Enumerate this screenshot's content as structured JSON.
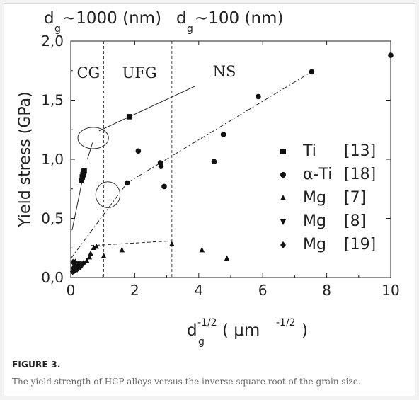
{
  "chart_data": {
    "type": "scatter",
    "title": "",
    "top_labels": {
      "left_main": "d",
      "left_sub": "g",
      "left_rest": "~1000 (nm)",
      "right_main": "d",
      "right_sub": "g",
      "right_rest": "~100 (nm)"
    },
    "xlabel": {
      "main": "d",
      "sub": "g",
      "sup": "-1/2",
      "mid": " ( μm",
      "sup2": "-1/2",
      "end": ")"
    },
    "ylabel": "Yield stress (GPa)",
    "xlim": [
      0,
      10
    ],
    "ylim": [
      0,
      2
    ],
    "x_ticks": [
      {
        "value": 0,
        "label": "0"
      },
      {
        "value": 2,
        "label": "2"
      },
      {
        "value": 4,
        "label": "4"
      },
      {
        "value": 6,
        "label": "6"
      },
      {
        "value": 8,
        "label": "8"
      },
      {
        "value": 10,
        "label": "10"
      }
    ],
    "y_ticks": [
      {
        "value": 0,
        "label": "0,0"
      },
      {
        "value": 0.5,
        "label": "0,5"
      },
      {
        "value": 1.0,
        "label": "1,0"
      },
      {
        "value": 1.5,
        "label": "1,5"
      },
      {
        "value": 2.0,
        "label": "2,0"
      }
    ],
    "grid": false,
    "legend_position": "right",
    "region_labels": [
      {
        "text": "CG",
        "x": 0.55,
        "y": 1.69
      },
      {
        "text": "UFG",
        "x": 2.15,
        "y": 1.69
      },
      {
        "text": "NS",
        "x": 4.8,
        "y": 1.7
      }
    ],
    "dividers_x": [
      1.03,
      3.16
    ],
    "series": [
      {
        "name": "Ti",
        "ref": "[13]",
        "marker": "square",
        "x": [
          0.33,
          0.36,
          0.38,
          0.4,
          0.42,
          1.83
        ],
        "y": [
          0.82,
          0.85,
          0.87,
          0.89,
          0.9,
          1.36
        ]
      },
      {
        "name": "α-Ti",
        "ref": "[18]",
        "marker": "circle",
        "x": [
          1.76,
          2.11,
          2.8,
          2.82,
          2.92,
          4.48,
          4.77,
          5.86,
          7.53,
          10.0
        ],
        "y": [
          0.8,
          1.07,
          0.97,
          0.94,
          0.77,
          0.98,
          1.21,
          1.53,
          1.74,
          1.88
        ]
      },
      {
        "name": "Mg",
        "ref": "[7]",
        "marker": "triangle-up",
        "x": [
          0.5,
          0.58,
          0.62,
          0.72,
          0.8,
          1.03,
          1.6,
          3.16,
          4.1,
          4.88
        ],
        "y": [
          0.14,
          0.17,
          0.2,
          0.25,
          0.26,
          0.18,
          0.23,
          0.28,
          0.23,
          0.16
        ]
      },
      {
        "name": "Mg",
        "ref": "[8]",
        "marker": "triangle-down",
        "x": [
          0.1,
          0.18,
          0.25
        ],
        "y": [
          0.11,
          0.1,
          0.12
        ]
      },
      {
        "name": "Mg",
        "ref": "[19]",
        "marker": "diamond",
        "x": [
          0.06,
          0.08,
          0.12,
          0.16,
          0.2,
          0.24,
          0.3,
          0.35,
          0.4,
          0.07,
          0.14
        ],
        "y": [
          0.05,
          0.08,
          0.06,
          0.09,
          0.07,
          0.1,
          0.09,
          0.11,
          0.12,
          0.13,
          0.13
        ]
      }
    ],
    "lines": [
      {
        "style": "solid",
        "points": [
          [
            0.04,
            0.4
          ],
          [
            0.42,
            0.9
          ]
        ]
      },
      {
        "style": "solid",
        "points": [
          [
            0.88,
            1.24
          ],
          [
            3.9,
            1.62
          ]
        ]
      },
      {
        "style": "dashdot",
        "points": [
          [
            0.0,
            0.16
          ],
          [
            1.76,
            0.8
          ],
          [
            7.53,
            1.74
          ]
        ]
      },
      {
        "style": "dashed",
        "points": [
          [
            0.62,
            0.27
          ],
          [
            3.16,
            0.31
          ]
        ]
      }
    ],
    "ellipses": [
      {
        "cx": 0.7,
        "cy": 1.18,
        "rx": 0.48,
        "ry": 0.09
      },
      {
        "cx": 1.16,
        "cy": 0.7,
        "rx": 0.38,
        "ry": 0.11
      }
    ],
    "callouts": [
      {
        "from": [
          0.68,
          1.14
        ],
        "to": [
          0.52,
          1.0
        ]
      }
    ]
  },
  "caption": {
    "title": "FIGURE 3.",
    "text": "The yield strength of HCP alloys versus the inverse square root of the grain size."
  }
}
